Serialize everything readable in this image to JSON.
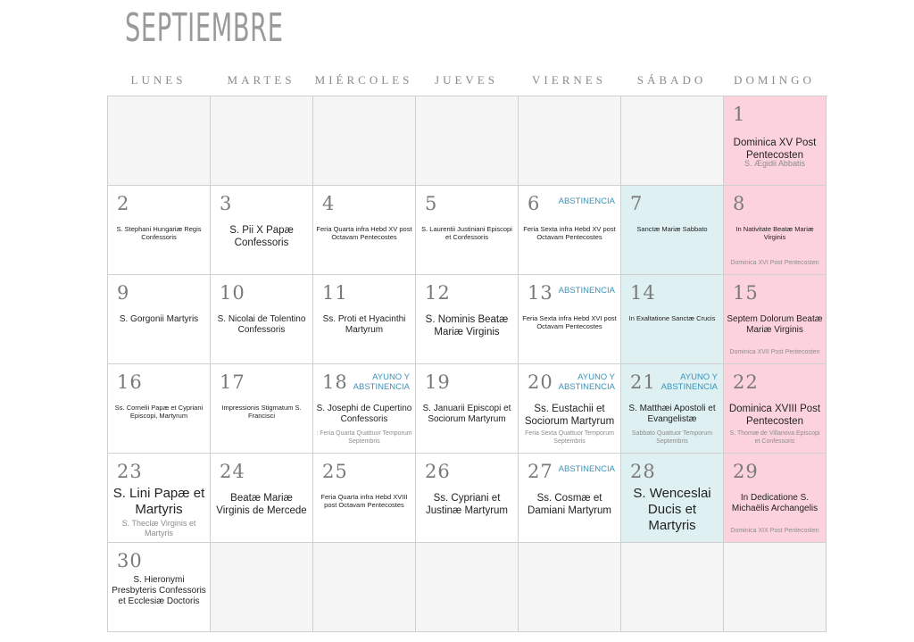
{
  "title": "SEPTIEMBRE",
  "weekdays": [
    "LUNES",
    "MARTES",
    "MIÉRCOLES",
    "JUEVES",
    "VIERNES",
    "SÁBADO",
    "DOMINGO"
  ],
  "colors": {
    "sunday": "#fcd3dd",
    "saturday_marian": "#dff0f3",
    "empty": "#f5f5f5",
    "tag": "#3a93b8"
  },
  "weeks": [
    [
      {
        "day": "",
        "bg": "empty"
      },
      {
        "day": "",
        "bg": "empty"
      },
      {
        "day": "",
        "bg": "empty"
      },
      {
        "day": "",
        "bg": "empty"
      },
      {
        "day": "",
        "bg": "empty"
      },
      {
        "day": "",
        "bg": "empty"
      },
      {
        "day": "1",
        "bg": "pink",
        "main": "Dominica XV Post Pentecosten",
        "sub": "S. Ægidii Abbatis"
      }
    ],
    [
      {
        "day": "2",
        "main": "S. Stephani Hungariæ Regis Confessoris"
      },
      {
        "day": "3",
        "main": "S. Pii X Papæ Confessoris"
      },
      {
        "day": "4",
        "main": "Feria Quarta infra Hebd XV post Octavam Pentecostes"
      },
      {
        "day": "5",
        "main": "S. Laurentii Justiniani Episcopi et Confessoris"
      },
      {
        "day": "6",
        "tag": "ABSTINENCIA",
        "main": "Feria Sexta infra Hebd XV post Octavam Pentecostes"
      },
      {
        "day": "7",
        "bg": "blue",
        "main": "Sanctæ Mariæ Sabbato"
      },
      {
        "day": "8",
        "bg": "pink",
        "main": "In Nativitate Beatæ Mariæ Virginis",
        "sub": "Dominica XVI Post Pentecosten"
      }
    ],
    [
      {
        "day": "9",
        "main": "S. Gorgonii Martyris"
      },
      {
        "day": "10",
        "main": "S. Nicolai de Tolentino Confessoris"
      },
      {
        "day": "11",
        "main": "Ss. Proti et Hyacinthi Martyrum"
      },
      {
        "day": "12",
        "main": "S. Nominis Beatæ Mariæ Virginis"
      },
      {
        "day": "13",
        "tag": "ABSTINENCIA",
        "main": "Feria Sexta infra Hebd XVI post Octavam Pentecostes"
      },
      {
        "day": "14",
        "bg": "blue",
        "main": "In Exaltatione Sanctæ Crucis"
      },
      {
        "day": "15",
        "bg": "pink",
        "main": "Septem Dolorum Beatæ Mariæ Virginis",
        "sub": "Dominica XVII Post Pentecosten"
      }
    ],
    [
      {
        "day": "16",
        "main": "Ss. Cornelii Papæ et Cypriani Episcopi, Martyrum"
      },
      {
        "day": "17",
        "main": "Impressionis Stigmatum S. Francisci"
      },
      {
        "day": "18",
        "tag": "AYUNO Y ABSTINENCIA",
        "main": "S. Josephi de Cupertino Confessoris",
        "sub": ": Feria Quarta Quattuor Temporum Septembris"
      },
      {
        "day": "19",
        "main": "S. Januarii Episcopi et Sociorum Martyrum"
      },
      {
        "day": "20",
        "tag": "AYUNO Y ABSTINENCIA",
        "main": "Ss. Eustachii et Sociorum Martyrum",
        "sub": "Feria Sexta Quattuor Temporum Septembris"
      },
      {
        "day": "21",
        "bg": "blue",
        "tag": "AYUNO Y ABSTINENCIA",
        "main": "S. Matthæi Apostoli et Evangelistæ",
        "sub": "Sabbato Quattuor Temporum Septembris"
      },
      {
        "day": "22",
        "bg": "pink",
        "main": "Dominica XVIII Post Pentecosten",
        "sub": "S. Thomæ de Villanova Episcopi et Confessoris"
      }
    ],
    [
      {
        "day": "23",
        "main": "S. Lini Papæ et Martyris",
        "sub": "S. Theclæ Virginis et Martyris"
      },
      {
        "day": "24",
        "main": "Beatæ Mariæ Virginis de Mercede"
      },
      {
        "day": "25",
        "main": "Feria Quarta infra Hebd XVIII post Octavam Pentecostes"
      },
      {
        "day": "26",
        "main": "Ss. Cypriani et Justinæ Martyrum"
      },
      {
        "day": "27",
        "tag": "ABSTINENCIA",
        "main": "Ss. Cosmæ et Damiani Martyrum"
      },
      {
        "day": "28",
        "bg": "blue",
        "main": "S. Wenceslai Ducis et Martyris"
      },
      {
        "day": "29",
        "bg": "pink",
        "main": "In Dedicatione S. Michaëlis Archangelis",
        "sub": "Dominica XIX Post Pentecosten"
      }
    ],
    [
      {
        "day": "30",
        "main": "S. Hieronymi Presbyteris Confessoris et Ecclesiæ Doctoris"
      },
      {
        "day": "",
        "bg": "empty"
      },
      {
        "day": "",
        "bg": "empty"
      },
      {
        "day": "",
        "bg": "empty"
      },
      {
        "day": "",
        "bg": "empty"
      },
      {
        "day": "",
        "bg": "empty"
      },
      {
        "day": "",
        "bg": "empty"
      }
    ]
  ]
}
